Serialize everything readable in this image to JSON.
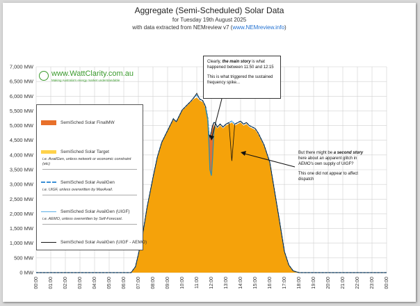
{
  "header": {
    "title": "Aggregate (Semi-Scheduled) Solar Data",
    "subtitle": "for Tuesday 19th August 2025",
    "source_prefix": "with data extracted from NEMreview v7 (",
    "source_link": "www.NEMreview.info",
    "source_suffix": ")"
  },
  "logo": {
    "name": "www.WattClarity.com.au",
    "tagline": "Making Australia's energy market understandable"
  },
  "legend": {
    "items": [
      {
        "label": "SemiSched Solar FinalMW",
        "note": ""
      },
      {
        "label": "SemiSched Solar Target",
        "note": "i.e. AvailGen, unless network or economic constraint (etc)"
      },
      {
        "label": "SemiSched Solar AvailGen",
        "note": "i.e. UIGF, unless overwritten by MaxAvail."
      },
      {
        "label": "SemiSched Solar AvailGen (UIGF)",
        "note": "i.e. AEMO, unless overwritten by Self-Forecast."
      },
      {
        "label": "SemiSched Solar AvailGen (UIGF - AEMO)",
        "note": ""
      }
    ]
  },
  "callouts": {
    "main": {
      "line1_pre": "Clearly, ",
      "line1_emph": "the main story",
      "line1_post": " is what happened between 11:50 and 12:15",
      "line2": "This is what triggered the sustained frequency spike..."
    },
    "second": {
      "line1_pre": "But there might be ",
      "line1_emph": "a second story",
      "line1_post": " here about an apparent glitch in AEMO's own supply of UIGF?",
      "line2": "This one did not appear to affect dispatch"
    }
  },
  "colors": {
    "final_mw": "#e8702a",
    "target": "#f5a20a",
    "target_legend": "#ffd24a",
    "availgen": "#3a8fd6",
    "uigf": "#5aaee6",
    "uigf_aemo": "#111111"
  },
  "chart_data": {
    "type": "area",
    "ylim": [
      0,
      7000
    ],
    "yticks": [
      "0 MW",
      "500 MW",
      "1,000 MW",
      "1,500 MW",
      "2,000 MW",
      "2,500 MW",
      "3,000 MW",
      "3,500 MW",
      "4,000 MW",
      "4,500 MW",
      "5,000 MW",
      "5,500 MW",
      "6,000 MW",
      "6,500 MW",
      "7,000 MW"
    ],
    "xticks": [
      "00:00",
      "01:00",
      "02:00",
      "03:00",
      "04:00",
      "05:00",
      "06:00",
      "07:00",
      "08:00",
      "09:00",
      "10:00",
      "11:00",
      "12:00",
      "13:00",
      "14:00",
      "15:00",
      "16:00",
      "17:00",
      "18:00",
      "19:00",
      "20:00",
      "21:00",
      "22:00",
      "23:00",
      "00:00"
    ],
    "x_hours": [
      0,
      6.5,
      6.8,
      7.0,
      7.3,
      7.6,
      8.0,
      8.3,
      8.6,
      9.0,
      9.2,
      9.4,
      9.6,
      9.8,
      10.0,
      10.2,
      10.4,
      10.6,
      10.8,
      11.0,
      11.2,
      11.4,
      11.6,
      11.75,
      11.83,
      11.9,
      12.0,
      12.08,
      12.17,
      12.25,
      12.4,
      12.6,
      12.8,
      13.0,
      13.2,
      13.4,
      13.6,
      13.8,
      14.0,
      14.2,
      14.4,
      14.6,
      14.8,
      15.0,
      15.2,
      15.4,
      15.6,
      15.8,
      16.0,
      16.3,
      16.6,
      17.0,
      17.3,
      17.6,
      18.0,
      24.0
    ],
    "series": [
      {
        "name": "SemiSched Solar FinalMW",
        "values": [
          0,
          0,
          200,
          600,
          1300,
          2200,
          3200,
          3900,
          4400,
          4800,
          5000,
          5200,
          5100,
          5300,
          5500,
          5600,
          5700,
          5800,
          5900,
          5950,
          5850,
          5800,
          5600,
          5200,
          4400,
          3500,
          3300,
          3900,
          4800,
          5000,
          4900,
          5000,
          4900,
          5000,
          5050,
          5100,
          5000,
          5050,
          5100,
          5000,
          5050,
          4950,
          4900,
          4850,
          4700,
          4500,
          4300,
          4000,
          3700,
          2800,
          1900,
          700,
          250,
          60,
          0,
          0
        ]
      },
      {
        "name": "SemiSched Solar Target",
        "values": [
          0,
          0,
          200,
          600,
          1300,
          2200,
          3200,
          3900,
          4400,
          4800,
          5000,
          5200,
          5100,
          5300,
          5500,
          5600,
          5700,
          5800,
          5900,
          5950,
          5850,
          5800,
          5600,
          5200,
          4400,
          3500,
          3300,
          3900,
          4800,
          5000,
          4900,
          5000,
          4900,
          5000,
          5050,
          5100,
          5000,
          5050,
          5100,
          5000,
          5050,
          4950,
          4900,
          4850,
          4700,
          4500,
          4300,
          4000,
          3700,
          2800,
          1900,
          700,
          250,
          60,
          0,
          0
        ]
      },
      {
        "name": "SemiSched Solar AvailGen",
        "values": [
          0,
          0,
          200,
          620,
          1320,
          2230,
          3230,
          3930,
          4430,
          4830,
          5030,
          5230,
          5130,
          5330,
          5530,
          5630,
          5730,
          5830,
          5950,
          6050,
          5900,
          5850,
          5650,
          5250,
          4700,
          4600,
          4800,
          5000,
          5100,
          5100,
          4950,
          5050,
          4950,
          5050,
          5100,
          5150,
          5050,
          5100,
          5150,
          5050,
          5100,
          5000,
          4950,
          4900,
          4750,
          4550,
          4350,
          4050,
          3750,
          2850,
          1950,
          720,
          260,
          60,
          0,
          0
        ]
      },
      {
        "name": "SemiSched Solar AvailGen (UIGF)",
        "values": [
          0,
          0,
          200,
          620,
          1320,
          2230,
          3230,
          3930,
          4430,
          4830,
          5030,
          5230,
          5130,
          5330,
          5530,
          5630,
          5730,
          5830,
          5950,
          6050,
          5900,
          5850,
          5650,
          5250,
          4700,
          4600,
          4800,
          5000,
          5100,
          5100,
          4950,
          5050,
          4950,
          5050,
          5100,
          5150,
          5050,
          5100,
          5150,
          5050,
          5100,
          5000,
          4950,
          4900,
          4750,
          4550,
          4350,
          4050,
          3750,
          2850,
          1950,
          720,
          260,
          60,
          0,
          0
        ]
      },
      {
        "name": "SemiSched Solar AvailGen (UIGF - AEMO)",
        "values": [
          0,
          0,
          200,
          620,
          1320,
          2230,
          3230,
          3930,
          4430,
          4830,
          5030,
          5230,
          5130,
          5330,
          5530,
          5630,
          5730,
          5830,
          5950,
          6100,
          5900,
          5850,
          5650,
          5250,
          4700,
          4600,
          4800,
          5000,
          5100,
          5100,
          4950,
          5050,
          4950,
          5050,
          5100,
          3800,
          5050,
          5100,
          5150,
          5050,
          5100,
          5000,
          4950,
          4900,
          4750,
          4550,
          4350,
          4050,
          3750,
          2850,
          1950,
          720,
          260,
          60,
          0,
          0
        ]
      }
    ]
  }
}
